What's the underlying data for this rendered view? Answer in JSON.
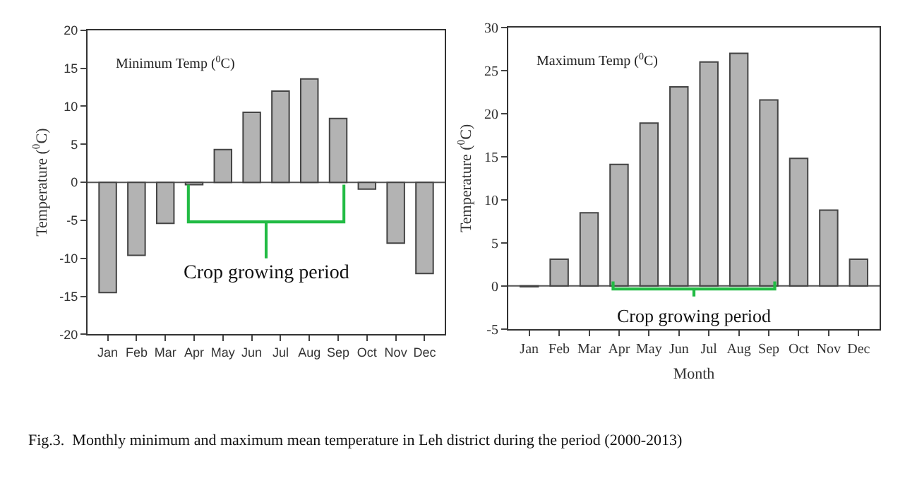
{
  "chart_data": [
    {
      "type": "bar",
      "ylabel": "Temperature ($^{0}$C)",
      "annotations": [
        "Minimum Temp ($^{0}$C)",
        "Crop growing period"
      ],
      "categories": [
        "Jan",
        "Feb",
        "Mar",
        "Apr",
        "May",
        "Jun",
        "Jul",
        "Aug",
        "Sep",
        "Oct",
        "Nov",
        "Dec"
      ],
      "values": [
        -14.5,
        -9.6,
        -5.4,
        -0.3,
        4.3,
        9.2,
        12.0,
        13.6,
        8.4,
        -0.9,
        -8.0,
        -12.0
      ],
      "color": "#b3b3b3",
      "ylim": [
        -20,
        20
      ],
      "yticks": [
        -20,
        -15,
        -10,
        -5,
        0,
        5,
        10,
        15,
        20
      ],
      "ref_lines": [
        {
          "axis": "y",
          "value": 0,
          "color": "#555555"
        }
      ]
    },
    {
      "type": "bar",
      "xlabel": "Month",
      "ylabel": "Temperature ($^{0}$C)",
      "annotations": [
        "Maximum Temp ($^{0}$C)",
        "Crop growing period",
        "Fig.3.  Monthly minimum and maximum mean temperature in Leh district during the period (2000-2013)"
      ],
      "categories": [
        "Jan",
        "Feb",
        "Mar",
        "Apr",
        "May",
        "Jun",
        "Jul",
        "Aug",
        "Sep",
        "Oct",
        "Nov",
        "Dec"
      ],
      "values": [
        -0.1,
        3.1,
        8.5,
        14.1,
        18.9,
        23.1,
        26.0,
        27.0,
        21.6,
        14.8,
        8.8,
        3.1
      ],
      "color": "#b3b3b3",
      "ylim": [
        -5,
        30
      ],
      "yticks": [
        -5,
        0,
        5,
        10,
        15,
        20,
        25,
        30
      ],
      "ref_lines": [
        {
          "axis": "y",
          "value": 0,
          "color": "#555555"
        }
      ]
    }
  ]
}
